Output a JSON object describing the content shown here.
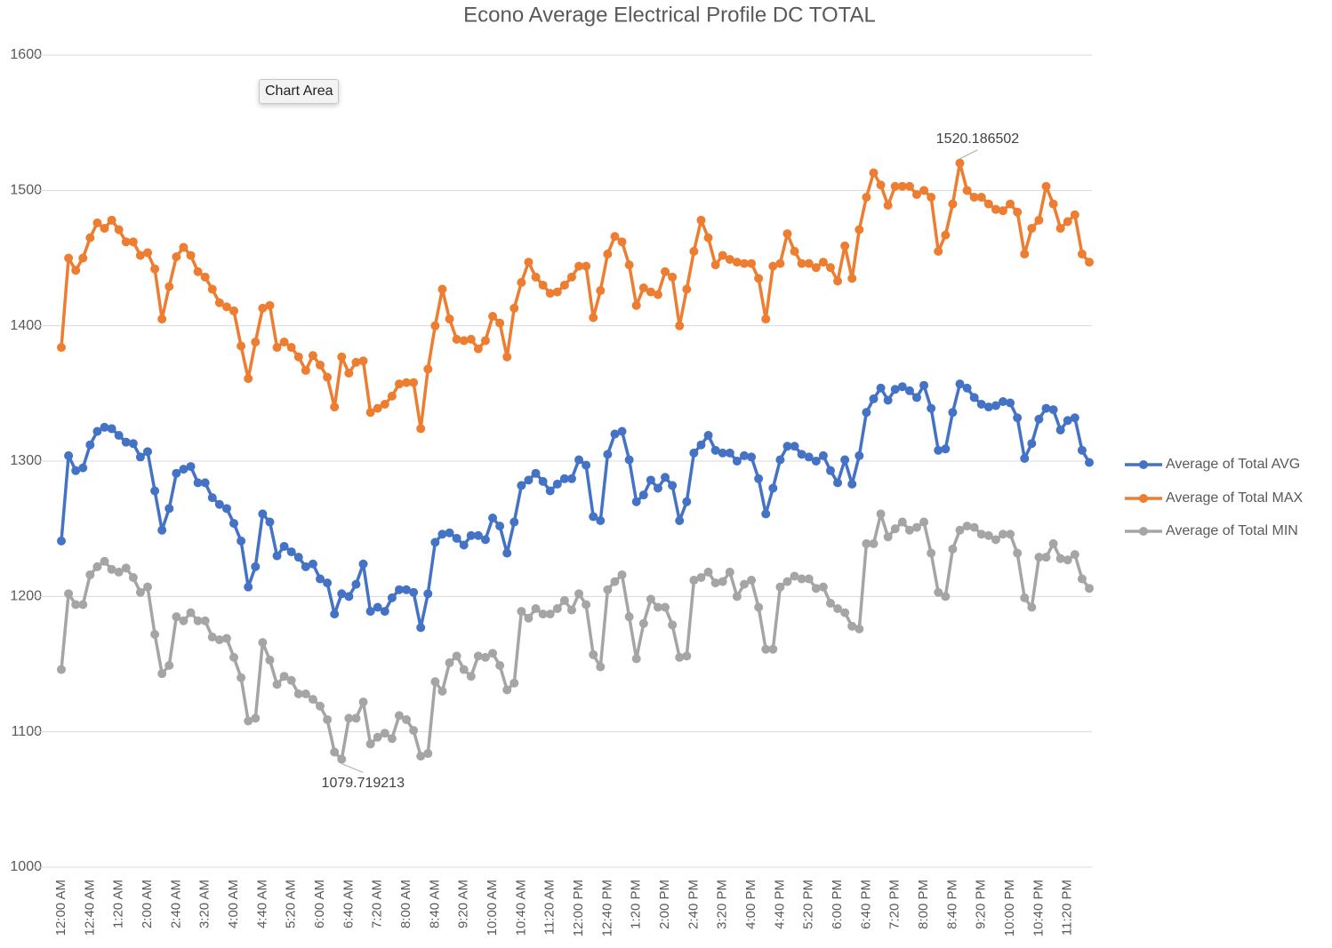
{
  "tooltip": "Chart Area",
  "chart_data": {
    "type": "line",
    "title": "Econo Average Electrical Profile DC TOTAL",
    "categories": [
      "12:00 AM",
      null,
      null,
      null,
      "12:40 AM",
      null,
      null,
      null,
      "1:20 AM",
      null,
      null,
      null,
      "2:00 AM",
      null,
      null,
      null,
      "2:40 AM",
      null,
      null,
      null,
      "3:20 AM",
      null,
      null,
      null,
      "4:00 AM",
      null,
      null,
      null,
      "4:40 AM",
      null,
      null,
      null,
      "5:20 AM",
      null,
      null,
      null,
      "6:00 AM",
      null,
      null,
      null,
      "6:40 AM",
      null,
      null,
      null,
      "7:20 AM",
      null,
      null,
      null,
      "8:00 AM",
      null,
      null,
      null,
      "8:40 AM",
      null,
      null,
      null,
      "9:20 AM",
      null,
      null,
      null,
      "10:00 AM",
      null,
      null,
      null,
      "10:40 AM",
      null,
      null,
      null,
      "11:20 AM",
      null,
      null,
      null,
      "12:00 PM",
      null,
      null,
      null,
      "12:40 PM",
      null,
      null,
      null,
      "1:20 PM",
      null,
      null,
      null,
      "2:00 PM",
      null,
      null,
      null,
      "2:40 PM",
      null,
      null,
      null,
      "3:20 PM",
      null,
      null,
      null,
      "4:00 PM",
      null,
      null,
      null,
      "4:40 PM",
      null,
      null,
      null,
      "5:20 PM",
      null,
      null,
      null,
      "6:00 PM",
      null,
      null,
      null,
      "6:40 PM",
      null,
      null,
      null,
      "7:20 PM",
      null,
      null,
      null,
      "8:00 PM",
      null,
      null,
      null,
      "8:40 PM",
      null,
      null,
      null,
      "9:20 PM",
      null,
      null,
      null,
      "10:00 PM",
      null,
      null,
      null,
      "10:40 PM",
      null,
      null,
      null,
      "11:20 PM",
      null,
      null,
      null
    ],
    "series": [
      {
        "name": "Average of Total AVG",
        "color": "#4472c4",
        "values": [
          1241,
          1304,
          1293,
          1295,
          1312,
          1322,
          1325,
          1324,
          1319,
          1314,
          1313,
          1303,
          1307,
          1278,
          1249,
          1265,
          1291,
          1294,
          1296,
          1284,
          1284,
          1273,
          1268,
          1265,
          1254,
          1241,
          1207,
          1222,
          1261,
          1255,
          1230,
          1237,
          1233,
          1229,
          1222,
          1224,
          1213,
          1210,
          1187,
          1202,
          1200,
          1209,
          1224,
          1189,
          1192,
          1189,
          1199,
          1205,
          1205,
          1203,
          1177,
          1202,
          1240,
          1246,
          1247,
          1243,
          1238,
          1245,
          1245,
          1242,
          1258,
          1252,
          1232,
          1255,
          1282,
          1286,
          1291,
          1285,
          1278,
          1283,
          1287,
          1287,
          1301,
          1297,
          1259,
          1256,
          1305,
          1320,
          1322,
          1301,
          1270,
          1275,
          1286,
          1280,
          1288,
          1282,
          1256,
          1270,
          1306,
          1312,
          1319,
          1308,
          1306,
          1306,
          1300,
          1304,
          1303,
          1287,
          1261,
          1280,
          1301,
          1311,
          1311,
          1305,
          1303,
          1300,
          1304,
          1293,
          1284,
          1301,
          1283,
          1304,
          1336,
          1346,
          1354,
          1345,
          1353,
          1355,
          1352,
          1347,
          1356,
          1339,
          1308,
          1309,
          1336,
          1357,
          1354,
          1347,
          1342,
          1340,
          1341,
          1344,
          1343,
          1332,
          1302,
          1313,
          1331,
          1339,
          1338,
          1323,
          1330,
          1332,
          1308,
          1299
        ]
      },
      {
        "name": "Average of Total MAX",
        "color": "#ed7d31",
        "values": [
          1384,
          1450,
          1441,
          1450,
          1465,
          1476,
          1472,
          1478,
          1471,
          1462,
          1462,
          1452,
          1454,
          1442,
          1405,
          1429,
          1451,
          1458,
          1452,
          1440,
          1436,
          1427,
          1417,
          1414,
          1411,
          1385,
          1361,
          1388,
          1413,
          1415,
          1384,
          1388,
          1384,
          1377,
          1367,
          1378,
          1371,
          1362,
          1340,
          1377,
          1365,
          1373,
          1374,
          1336,
          1339,
          1342,
          1348,
          1357,
          1358,
          1358,
          1324,
          1368,
          1400,
          1427,
          1405,
          1390,
          1389,
          1390,
          1383,
          1389,
          1407,
          1402,
          1377,
          1413,
          1432,
          1447,
          1436,
          1430,
          1424,
          1425,
          1430,
          1436,
          1444,
          1444,
          1406,
          1426,
          1453,
          1466,
          1462,
          1445,
          1415,
          1428,
          1425,
          1423,
          1440,
          1436,
          1400,
          1427,
          1455,
          1478,
          1465,
          1445,
          1452,
          1449,
          1447,
          1446,
          1446,
          1435,
          1405,
          1444,
          1446,
          1468,
          1455,
          1446,
          1446,
          1443,
          1447,
          1443,
          1433,
          1459,
          1435,
          1471,
          1495,
          1513,
          1504,
          1489,
          1503,
          1503,
          1503,
          1497,
          1500,
          1495,
          1455,
          1467,
          1490,
          1520.186502,
          1500,
          1495,
          1495,
          1490,
          1486,
          1485,
          1490,
          1484,
          1453,
          1472,
          1478,
          1503,
          1490,
          1472,
          1477,
          1482,
          1453,
          1447
        ]
      },
      {
        "name": "Average of Total MIN",
        "color": "#a5a5a5",
        "values": [
          1146,
          1202,
          1194,
          1194,
          1216,
          1222,
          1226,
          1220,
          1218,
          1221,
          1214,
          1203,
          1207,
          1172,
          1143,
          1149,
          1185,
          1182,
          1188,
          1182,
          1182,
          1170,
          1168,
          1169,
          1155,
          1140,
          1108,
          1110,
          1166,
          1153,
          1135,
          1141,
          1138,
          1128,
          1128,
          1124,
          1119,
          1109,
          1085,
          1079.719213,
          1110,
          1110,
          1122,
          1091,
          1096,
          1099,
          1095,
          1112,
          1109,
          1101,
          1082,
          1084,
          1137,
          1130,
          1151,
          1156,
          1146,
          1141,
          1156,
          1155,
          1158,
          1149,
          1131,
          1136,
          1189,
          1184,
          1191,
          1187,
          1187,
          1191,
          1197,
          1190,
          1202,
          1194,
          1157,
          1148,
          1205,
          1211,
          1216,
          1185,
          1154,
          1180,
          1198,
          1192,
          1192,
          1179,
          1155,
          1156,
          1212,
          1214,
          1218,
          1210,
          1211,
          1218,
          1200,
          1209,
          1212,
          1192,
          1161,
          1161,
          1207,
          1211,
          1215,
          1213,
          1213,
          1206,
          1207,
          1195,
          1191,
          1188,
          1178,
          1176,
          1239,
          1239,
          1261,
          1244,
          1250,
          1255,
          1249,
          1251,
          1255,
          1232,
          1203,
          1200,
          1235,
          1249,
          1252,
          1251,
          1246,
          1245,
          1242,
          1246,
          1246,
          1232,
          1199,
          1192,
          1229,
          1229,
          1239,
          1228,
          1227,
          1231,
          1213,
          1206
        ]
      }
    ],
    "ylim": [
      1000,
      1600
    ],
    "yticks": [
      1000,
      1100,
      1200,
      1300,
      1400,
      1500,
      1600
    ],
    "grid": true,
    "legend": "right"
  }
}
